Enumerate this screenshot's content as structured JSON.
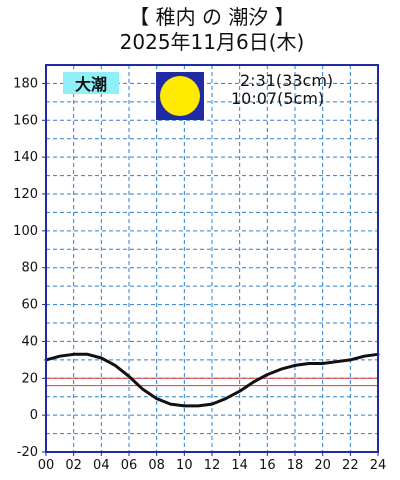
{
  "chart_data": {
    "type": "line",
    "title_line1": "【 稚内 の 潮汐 】",
    "title_line2": "2025年11月6日(木)",
    "badge": "大潮",
    "moon_phase": "full-moon",
    "annotations": [
      "2:31(33cm)",
      "10:07(5cm)"
    ],
    "x_ticks": [
      "00",
      "02",
      "04",
      "06",
      "08",
      "10",
      "12",
      "14",
      "16",
      "18",
      "20",
      "22",
      "24"
    ],
    "y_ticks": [
      "-20",
      "0",
      "20",
      "40",
      "60",
      "80",
      "100",
      "120",
      "140",
      "160",
      "180"
    ],
    "xlim": [
      0,
      24
    ],
    "ylim": [
      -20,
      190
    ],
    "grid": true,
    "reference_levels": [
      16,
      20
    ],
    "series": [
      {
        "x": [
          0,
          1,
          2,
          2.52,
          3,
          4,
          5,
          6,
          7,
          8,
          9,
          10,
          10.12,
          11,
          12,
          13,
          14,
          15,
          16,
          17,
          18,
          19,
          20,
          21,
          22,
          23,
          24
        ],
        "values": [
          30,
          32,
          33,
          33,
          33,
          31,
          27,
          21,
          14,
          9,
          6,
          5,
          5,
          5,
          6,
          9,
          13,
          18,
          22,
          25,
          27,
          28,
          28,
          29,
          30,
          32,
          33
        ]
      }
    ],
    "colors": {
      "plot_border": "#1f2aa3",
      "grid": "#2e7fd1",
      "reference_line": "#d63b3b",
      "curve": "#111111",
      "badge_bg": "#8ff0f7",
      "moon_bg": "#1f2aa3",
      "moon_fill": "#ffea00"
    }
  }
}
